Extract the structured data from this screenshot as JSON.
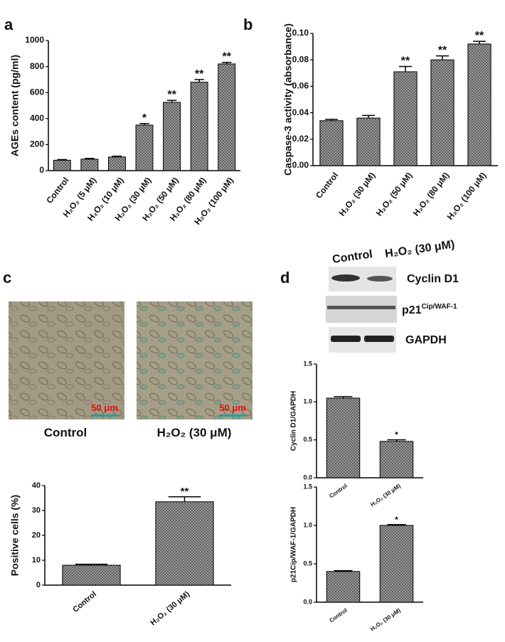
{
  "panels": [
    "a",
    "b",
    "c",
    "d"
  ],
  "images": {
    "labels": [
      "Control",
      "H₂O₂ (30 μM)"
    ],
    "scale_bar": "50 μm"
  },
  "blot": {
    "columns": [
      "Control",
      "H₂O₂ (30 μM)"
    ],
    "rows": [
      {
        "label": "Cyclin D1"
      },
      {
        "label": "p21",
        "superscript": "Cip/WAF-1"
      },
      {
        "label": "GAPDH"
      }
    ]
  },
  "chart_data": [
    {
      "type": "bar",
      "y_label": "AGEs content (pg/ml)",
      "color": "#a8a8a8",
      "categories": [
        "Control",
        "H₂O₂ (5 μM)",
        "H₂O₂ (10 μM)",
        "H₂O₂ (30 μM)",
        "H₂O₂ (50 μM)",
        "H₂O₂ (80 μM)",
        "H₂O₂ (100 μM)"
      ],
      "values": [
        80,
        88,
        105,
        350,
        525,
        680,
        820
      ],
      "errors": [
        5,
        6,
        6,
        12,
        15,
        20,
        12
      ],
      "annotations": [
        null,
        null,
        null,
        "*",
        "**",
        "**",
        "**"
      ],
      "ylim": [
        0,
        1000
      ],
      "yticks": [
        0,
        200,
        400,
        600,
        800,
        1000
      ]
    },
    {
      "type": "bar",
      "y_label": "Caspase-3 activity (absorbance)",
      "color": "#a8a8a8",
      "categories": [
        "Control",
        "H₂O₂ (30 μM)",
        "H₂O₂ (50 μM)",
        "H₂O₂ (80 μM)",
        "H₂O₂ (100 μM)"
      ],
      "values": [
        0.034,
        0.036,
        0.071,
        0.08,
        0.092
      ],
      "errors": [
        0.001,
        0.002,
        0.004,
        0.003,
        0.002
      ],
      "annotations": [
        null,
        null,
        "**",
        "**",
        "**"
      ],
      "ylim": [
        0,
        0.1
      ],
      "yticks": [
        {
          "value": 0,
          "label": "0.00"
        },
        {
          "value": 0.02,
          "label": "0.02"
        },
        {
          "value": 0.04,
          "label": "0.04"
        },
        {
          "value": 0.06,
          "label": "0.06"
        },
        {
          "value": 0.08,
          "label": "0.08"
        },
        {
          "value": 0.1,
          "label": "0.10"
        }
      ]
    },
    {
      "type": "bar",
      "y_label": "Positive cells (%)",
      "color": "#a8a8a8",
      "categories": [
        "Control",
        "H₂O₂ (30 μM)"
      ],
      "values": [
        8,
        33.5
      ],
      "errors": [
        0.4,
        2
      ],
      "annotations": [
        null,
        "**"
      ],
      "ylim": [
        0,
        40
      ],
      "yticks": [
        0,
        10,
        20,
        30,
        40
      ]
    },
    {
      "type": "bar",
      "y_label": "Cyclin D1/GAPDH",
      "color": "#a8a8a8",
      "categories": [
        "Control",
        "H₂O₂ (30 μM)"
      ],
      "values": [
        1.05,
        0.48
      ],
      "errors": [
        0.02,
        0.02
      ],
      "annotations": [
        null,
        "*"
      ],
      "ylim": [
        0,
        1.5
      ],
      "yticks": [
        {
          "value": 0,
          "label": "0.0"
        },
        {
          "value": 0.5,
          "label": "0.5"
        },
        {
          "value": 1,
          "label": "1.0"
        },
        {
          "value": 1.5,
          "label": "1.5"
        }
      ]
    },
    {
      "type": "bar",
      "y_label": "p21Cip/WAF-1/GAPDH",
      "color": "#a8a8a8",
      "categories": [
        "Control",
        "H₂O₂ (30 μM)"
      ],
      "values": [
        0.4,
        1.0
      ],
      "errors": [
        0.01,
        0.01
      ],
      "annotations": [
        null,
        "*"
      ],
      "ylim": [
        0,
        1.5
      ],
      "yticks": [
        {
          "value": 0,
          "label": "0.0"
        },
        {
          "value": 0.5,
          "label": "0.5"
        },
        {
          "value": 1,
          "label": "1.0"
        },
        {
          "value": 1.5,
          "label": "1.5"
        }
      ]
    }
  ]
}
